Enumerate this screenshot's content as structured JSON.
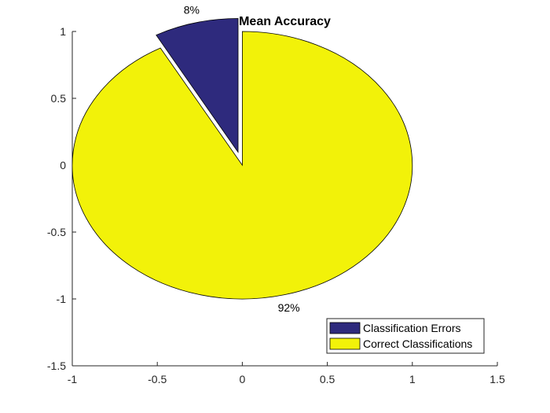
{
  "chart_data": {
    "type": "pie",
    "title": "Mean Accuracy",
    "slices": [
      {
        "label": "Classification Errors",
        "value": 8,
        "percent_label": "8%",
        "color": "#2e2a7d",
        "exploded": true
      },
      {
        "label": "Correct Classifications",
        "value": 92,
        "percent_label": "92%",
        "color": "#f2f209",
        "exploded": false
      }
    ],
    "xlim": [
      -1,
      1.5
    ],
    "ylim": [
      -1.5,
      1
    ],
    "xticks": [
      -1,
      -0.5,
      0,
      0.5,
      1,
      1.5
    ],
    "xtick_labels": [
      "-1",
      "-0.5",
      "0",
      "0.5",
      "1",
      "1.5"
    ],
    "yticks": [
      1,
      0.5,
      0,
      -0.5,
      -1,
      -1.5
    ],
    "ytick_labels": [
      "1",
      "0.5",
      "0",
      "-0.5",
      "-1",
      "-1.5"
    ],
    "grid": false,
    "legend": {
      "position": "bottom-right",
      "entries": [
        "Classification Errors",
        "Correct Classifications"
      ]
    }
  }
}
